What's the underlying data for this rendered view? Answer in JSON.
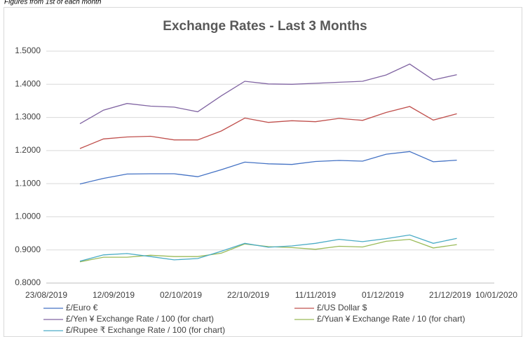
{
  "note_top": "Figures from 1st of each month",
  "chart_data": {
    "type": "line",
    "title": "Exchange Rates - Last 3 Months",
    "x": [
      "02/09/2019",
      "09/09/2019",
      "16/09/2019",
      "23/09/2019",
      "30/09/2019",
      "07/10/2019",
      "14/10/2019",
      "21/10/2019",
      "28/10/2019",
      "04/11/2019",
      "11/11/2019",
      "18/11/2019",
      "25/11/2019",
      "02/12/2019",
      "09/12/2019",
      "16/12/2019",
      "23/12/2019"
    ],
    "series": [
      {
        "name": "£/Euro €",
        "color": "#4472c4",
        "values": [
          1.099,
          1.116,
          1.129,
          1.13,
          1.13,
          1.121,
          1.142,
          1.165,
          1.16,
          1.158,
          1.167,
          1.17,
          1.168,
          1.189,
          1.197,
          1.166,
          1.171
        ]
      },
      {
        "name": "£/US Dollar $",
        "color": "#c0504d",
        "values": [
          1.206,
          1.235,
          1.241,
          1.243,
          1.232,
          1.232,
          1.259,
          1.298,
          1.285,
          1.29,
          1.287,
          1.297,
          1.291,
          1.315,
          1.333,
          1.292,
          1.311
        ]
      },
      {
        "name": "£/Yen ¥ Exchange Rate / 100 (for chart)",
        "color": "#8064a2",
        "values": [
          1.281,
          1.322,
          1.342,
          1.334,
          1.331,
          1.317,
          1.365,
          1.409,
          1.401,
          1.4,
          1.403,
          1.406,
          1.409,
          1.428,
          1.461,
          1.413,
          1.429
        ]
      },
      {
        "name": "£/Yuan ¥ Exchange Rate / 10 (for chart)",
        "color": "#9bbb59",
        "values": [
          0.864,
          0.878,
          0.878,
          0.884,
          0.88,
          0.88,
          0.89,
          0.918,
          0.91,
          0.907,
          0.902,
          0.911,
          0.909,
          0.926,
          0.932,
          0.906,
          0.916
        ]
      },
      {
        "name": "£/Rupee ₹ Exchange Rate / 100 (for chart)",
        "color": "#4bacc6",
        "values": [
          0.866,
          0.885,
          0.889,
          0.88,
          0.87,
          0.874,
          0.896,
          0.92,
          0.908,
          0.912,
          0.92,
          0.932,
          0.925,
          0.934,
          0.945,
          0.92,
          0.935
        ]
      }
    ],
    "xlim": [
      "23/08/2019",
      "10/01/2020"
    ],
    "xticks": [
      "23/08/2019",
      "12/09/2019",
      "02/10/2019",
      "22/10/2019",
      "11/11/2019",
      "01/12/2019",
      "21/12/2019",
      "10/01/2020"
    ],
    "ylim": [
      0.8,
      1.5
    ],
    "yticks": [
      {
        "value": 0.8,
        "label": "0.8000"
      },
      {
        "value": 0.9,
        "label": "0.9000"
      },
      {
        "value": 1.0,
        "label": "1.0000"
      },
      {
        "value": 1.1,
        "label": "1.1000"
      },
      {
        "value": 1.2,
        "label": "1.2000"
      },
      {
        "value": 1.3,
        "label": "1.3000"
      },
      {
        "value": 1.4,
        "label": "1.4000"
      },
      {
        "value": 1.5,
        "label": "1.5000"
      }
    ],
    "grid": true,
    "legend": "bottom"
  }
}
